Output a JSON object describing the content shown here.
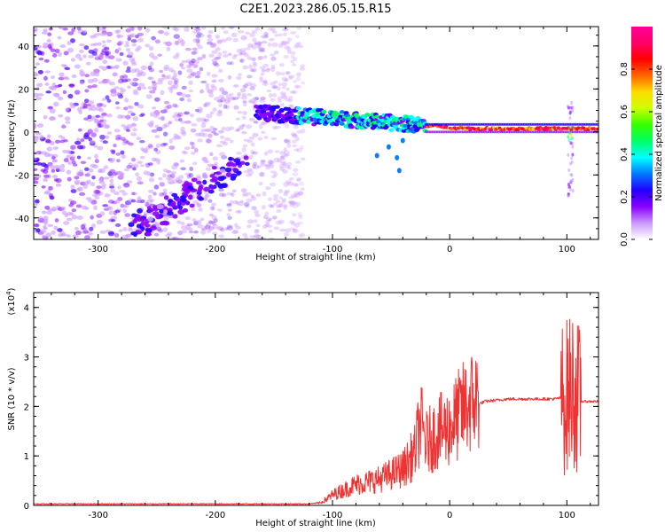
{
  "title": "C2E1.2023.286.05.15.R15",
  "chart_data": [
    {
      "type": "heatmap",
      "xlabel": "Height of straight line (km)",
      "ylabel": "Frequency (Hz)",
      "xlim": [
        -355,
        127
      ],
      "ylim": [
        -50,
        49
      ],
      "x_ticks": [
        -300,
        -200,
        -100,
        0,
        100
      ],
      "y_ticks": [
        -40,
        -20,
        0,
        20,
        40
      ],
      "colorbar": {
        "label": "Normalized spectral amplitude",
        "range": [
          0,
          1
        ],
        "ticks": [
          "0.0",
          "0.2",
          "0.4",
          "0.6",
          "0.8"
        ],
        "colors": [
          "#ffffff",
          "#cc99ff",
          "#8800ff",
          "#2200ff",
          "#0077ff",
          "#00ffff",
          "#00ff66",
          "#33ff00",
          "#ccff00",
          "#ffdd00",
          "#ff6600",
          "#ff0000",
          "#ff0066",
          "#ff0099"
        ]
      },
      "features": {
        "carrier_line": {
          "x_start": -165,
          "x_end": 127,
          "frequency_hz_start": 9,
          "frequency_hz_end": 1.5
        },
        "diagonal_band": {
          "x_start": -270,
          "x_end": -180,
          "frequency_hz_start": -46,
          "frequency_hz_end": -15
        },
        "noise_extent_x_max": -125,
        "spike_x": 103
      }
    },
    {
      "type": "line",
      "xlabel": "Height of straight line (km)",
      "ylabel": "SNR (10 * v/v)",
      "scale_label": "(x10",
      "scale_exponent": "4",
      "xlim": [
        -355,
        127
      ],
      "ylim": [
        0,
        4.3
      ],
      "x_ticks": [
        -300,
        -200,
        -100,
        0,
        100
      ],
      "y_ticks": [
        0,
        1,
        2,
        3,
        4
      ],
      "line_color": "#ee3333",
      "series": [
        {
          "x": [
            -355,
            -300,
            -200,
            -120,
            -110,
            -100,
            -80,
            -60,
            -40,
            -30,
            -25,
            -20,
            -10,
            0,
            10,
            20,
            30,
            50,
            70,
            90,
            100,
            105,
            110,
            127
          ],
          "values": [
            0.02,
            0.02,
            0.02,
            0.02,
            0.05,
            0.2,
            0.4,
            0.5,
            0.7,
            1.0,
            1.6,
            1.2,
            1.4,
            1.5,
            1.8,
            2.0,
            2.1,
            2.15,
            2.15,
            2.15,
            2.2,
            2.4,
            2.1,
            2.1
          ]
        }
      ]
    }
  ]
}
